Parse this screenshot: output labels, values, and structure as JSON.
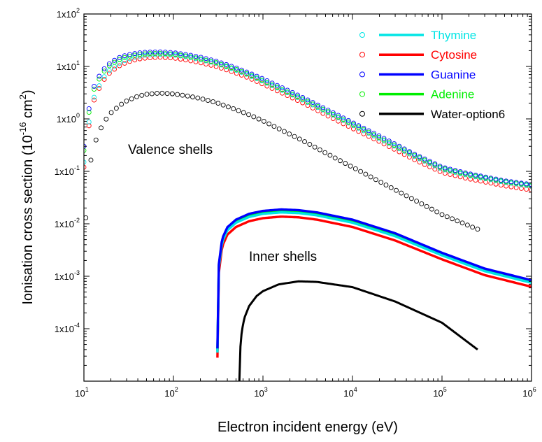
{
  "chart_data": {
    "type": "scatter",
    "xlabel": "Electron incident energy (eV)",
    "ylabel": {
      "prefix": "Ionisation cross section (10",
      "exp": "-16",
      "mid": " cm",
      "exp2": "2",
      "suffix": ")"
    },
    "xscale": "log",
    "yscale": "log",
    "xlim": [
      10,
      1000000
    ],
    "ylim": [
      1e-05,
      100
    ],
    "x_ticks": [
      {
        "base": "10",
        "exp": "1"
      },
      {
        "base": "10",
        "exp": "2"
      },
      {
        "base": "10",
        "exp": "3"
      },
      {
        "base": "10",
        "exp": "4"
      },
      {
        "base": "10",
        "exp": "5"
      },
      {
        "base": "10",
        "exp": "6"
      }
    ],
    "y_ticks": [
      {
        "base": "1x10",
        "exp": "2"
      },
      {
        "base": "1x10",
        "exp": "1"
      },
      {
        "base": "1x10",
        "exp": "0"
      },
      {
        "base": "1x10",
        "exp": "-1"
      },
      {
        "base": "1x10",
        "exp": "-2"
      },
      {
        "base": "1x10",
        "exp": "-3"
      },
      {
        "base": "1x10",
        "exp": "-4"
      }
    ],
    "annotations": [
      "Valence shells",
      "Inner shells"
    ],
    "legend": {
      "position": "top-right"
    },
    "grid": false,
    "series": [
      {
        "name": "Thymine",
        "color": "#00E5E5",
        "valence": {
          "x": [
            10,
            11,
            12,
            13,
            15,
            17,
            20,
            25,
            30,
            40,
            50,
            70,
            100,
            150,
            200,
            300,
            500,
            700,
            1000,
            2000,
            3000,
            5000,
            10000,
            20000,
            50000,
            100000,
            200000,
            500000,
            1000000
          ],
          "y": [
            0.15,
            0.6,
            1.5,
            2.6,
            4.5,
            6.5,
            9,
            11.5,
            13.5,
            15.5,
            16.5,
            17,
            16.5,
            15,
            13.5,
            11.5,
            8.5,
            6.8,
            5.2,
            3.0,
            2.15,
            1.4,
            0.76,
            0.42,
            0.19,
            0.11,
            0.083,
            0.062,
            0.052
          ]
        },
        "inner": {
          "x": [
            310,
            312,
            320,
            350,
            400,
            500,
            700,
            1000,
            1600,
            2500,
            4000,
            10000,
            30000,
            100000,
            300000,
            1000000
          ],
          "y": [
            3.5e-05,
            0.0003,
            0.0014,
            0.0045,
            0.0075,
            0.0105,
            0.0135,
            0.0155,
            0.0165,
            0.016,
            0.0145,
            0.0105,
            0.0058,
            0.0025,
            0.00125,
            0.00075
          ]
        }
      },
      {
        "name": "Cytosine",
        "color": "#FF0000",
        "valence": {
          "x": [
            10,
            11,
            12,
            13,
            15,
            17,
            20,
            25,
            30,
            40,
            50,
            70,
            100,
            150,
            200,
            300,
            500,
            700,
            1000,
            2000,
            3000,
            5000,
            10000,
            20000,
            50000,
            100000,
            200000,
            500000,
            1000000
          ],
          "y": [
            0.12,
            0.5,
            1.3,
            2.3,
            4,
            5.8,
            8,
            10.3,
            12,
            13.8,
            14.5,
            15,
            14.5,
            13,
            11.8,
            10,
            7.5,
            6,
            4.6,
            2.65,
            1.9,
            1.2,
            0.66,
            0.37,
            0.165,
            0.095,
            0.072,
            0.053,
            0.044
          ]
        },
        "inner": {
          "x": [
            310,
            312,
            320,
            350,
            400,
            500,
            700,
            1000,
            1600,
            2500,
            4000,
            10000,
            30000,
            100000,
            300000,
            1000000
          ],
          "y": [
            2.8e-05,
            0.00024,
            0.0011,
            0.0037,
            0.0062,
            0.0087,
            0.0112,
            0.0128,
            0.0137,
            0.0133,
            0.012,
            0.0087,
            0.0048,
            0.0021,
            0.00105,
            0.00063
          ]
        }
      },
      {
        "name": "Guanine",
        "color": "#0000FF",
        "valence": {
          "x": [
            10,
            11,
            12,
            13,
            15,
            17,
            20,
            25,
            30,
            40,
            50,
            70,
            100,
            150,
            200,
            300,
            500,
            700,
            1000,
            2000,
            3000,
            5000,
            10000,
            20000,
            50000,
            100000,
            200000,
            500000,
            1000000
          ],
          "y": [
            0.3,
            1.1,
            2.6,
            4.2,
            6.8,
            9.2,
            12,
            14.8,
            16.5,
            18,
            18.7,
            19,
            18.3,
            16.5,
            15,
            12.6,
            9.4,
            7.5,
            5.8,
            3.35,
            2.4,
            1.55,
            0.85,
            0.47,
            0.21,
            0.12,
            0.09,
            0.066,
            0.056
          ]
        },
        "inner": {
          "x": [
            310,
            312,
            320,
            350,
            400,
            500,
            700,
            1000,
            1600,
            2500,
            4000,
            10000,
            30000,
            100000,
            300000,
            1000000
          ],
          "y": [
            4.2e-05,
            0.00034,
            0.0016,
            0.0052,
            0.0086,
            0.012,
            0.0155,
            0.0176,
            0.0188,
            0.0182,
            0.0165,
            0.012,
            0.0066,
            0.0028,
            0.0014,
            0.00084
          ]
        }
      },
      {
        "name": "Adenine",
        "color": "#00EE00",
        "valence": {
          "x": [
            10,
            11,
            12,
            13,
            15,
            17,
            20,
            25,
            30,
            40,
            50,
            70,
            100,
            150,
            200,
            300,
            500,
            700,
            1000,
            2000,
            3000,
            5000,
            10000,
            20000,
            50000,
            100000,
            200000,
            500000,
            1000000
          ],
          "y": [
            0.25,
            0.95,
            2.2,
            3.7,
            6,
            8.3,
            11,
            13.6,
            15.3,
            16.8,
            17.5,
            17.8,
            17.2,
            15.5,
            14,
            11.8,
            8.8,
            7.0,
            5.4,
            3.1,
            2.25,
            1.45,
            0.8,
            0.44,
            0.2,
            0.115,
            0.086,
            0.064,
            0.054
          ]
        },
        "inner": {
          "x": [
            310,
            312,
            320,
            350,
            400,
            500,
            700,
            1000,
            1600,
            2500,
            4000,
            10000,
            30000,
            100000,
            300000,
            1000000
          ],
          "y": [
            3.8e-05,
            0.00032,
            0.0015,
            0.0049,
            0.0081,
            0.0113,
            0.0146,
            0.0166,
            0.0177,
            0.0172,
            0.0155,
            0.0113,
            0.0062,
            0.0027,
            0.00133,
            0.0008
          ]
        }
      },
      {
        "name": "Water-option6",
        "color": "#000000",
        "valence": {
          "x": [
            10.5,
            11,
            12,
            13,
            15,
            17,
            20,
            25,
            30,
            40,
            50,
            70,
            100,
            150,
            200,
            300,
            500,
            700,
            1000,
            2000,
            3000,
            5000,
            10000,
            20000,
            50000,
            100000,
            200000,
            250000
          ],
          "y": [
            0.013,
            0.05,
            0.17,
            0.32,
            0.6,
            0.9,
            1.3,
            1.8,
            2.2,
            2.7,
            2.95,
            3.1,
            3.0,
            2.7,
            2.45,
            2.05,
            1.5,
            1.2,
            0.92,
            0.51,
            0.36,
            0.225,
            0.12,
            0.064,
            0.028,
            0.015,
            0.0092,
            0.0079
          ]
        },
        "inner": {
          "x": [
            545,
            550,
            560,
            580,
            620,
            700,
            850,
            1000,
            1500,
            2500,
            4000,
            10000,
            30000,
            100000,
            250000
          ],
          "y": [
            1e-05,
            2.2e-05,
            4.5e-05,
            9e-05,
            0.00016,
            0.00027,
            0.00042,
            0.00052,
            0.0007,
            0.0008,
            0.00078,
            0.00062,
            0.00033,
            0.00013,
            4e-05
          ]
        }
      }
    ]
  }
}
